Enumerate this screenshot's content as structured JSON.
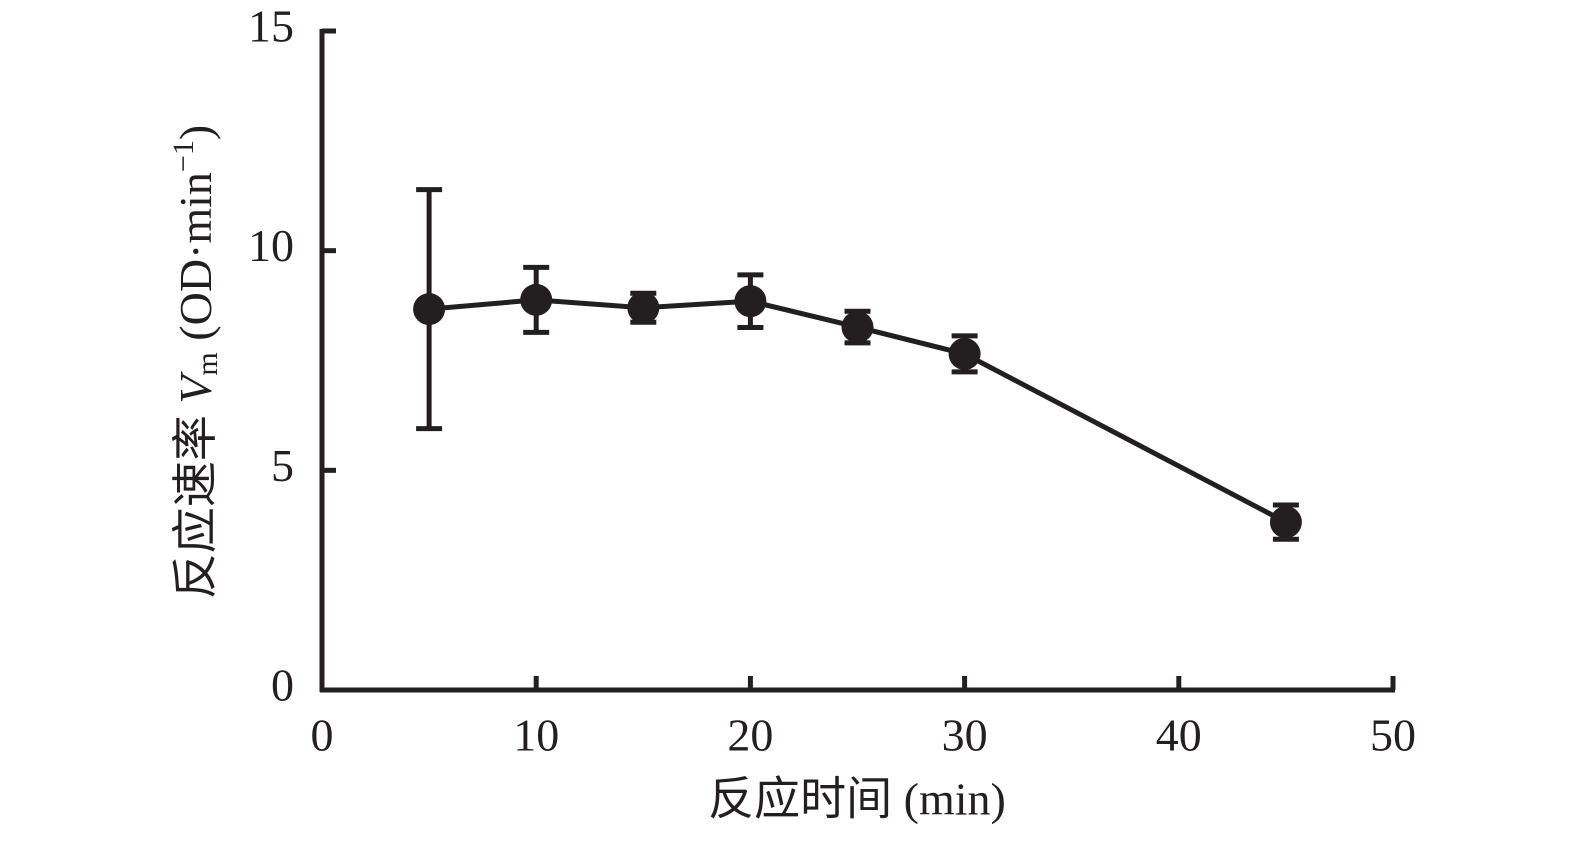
{
  "chart_data": {
    "type": "line",
    "xlabel": "反应时间 (min)",
    "ylabel": [
      "反应速率 ",
      "V",
      "m",
      " (OD·min",
      "−1",
      ")"
    ],
    "x": [
      5,
      10,
      15,
      20,
      25,
      30,
      45
    ],
    "series": [
      {
        "color": "#231f20",
        "values": [
          8.67,
          8.88,
          8.7,
          8.85,
          8.26,
          7.65,
          3.82
        ],
        "errors": [
          2.72,
          0.74,
          0.33,
          0.6,
          0.36,
          0.41,
          0.39
        ]
      }
    ],
    "xlim": [
      0,
      50
    ],
    "xticks": [
      0,
      10,
      20,
      30,
      40,
      50
    ],
    "ylim": [
      0,
      15
    ],
    "yticks": [
      0,
      5,
      10,
      15
    ],
    "grid": false
  }
}
